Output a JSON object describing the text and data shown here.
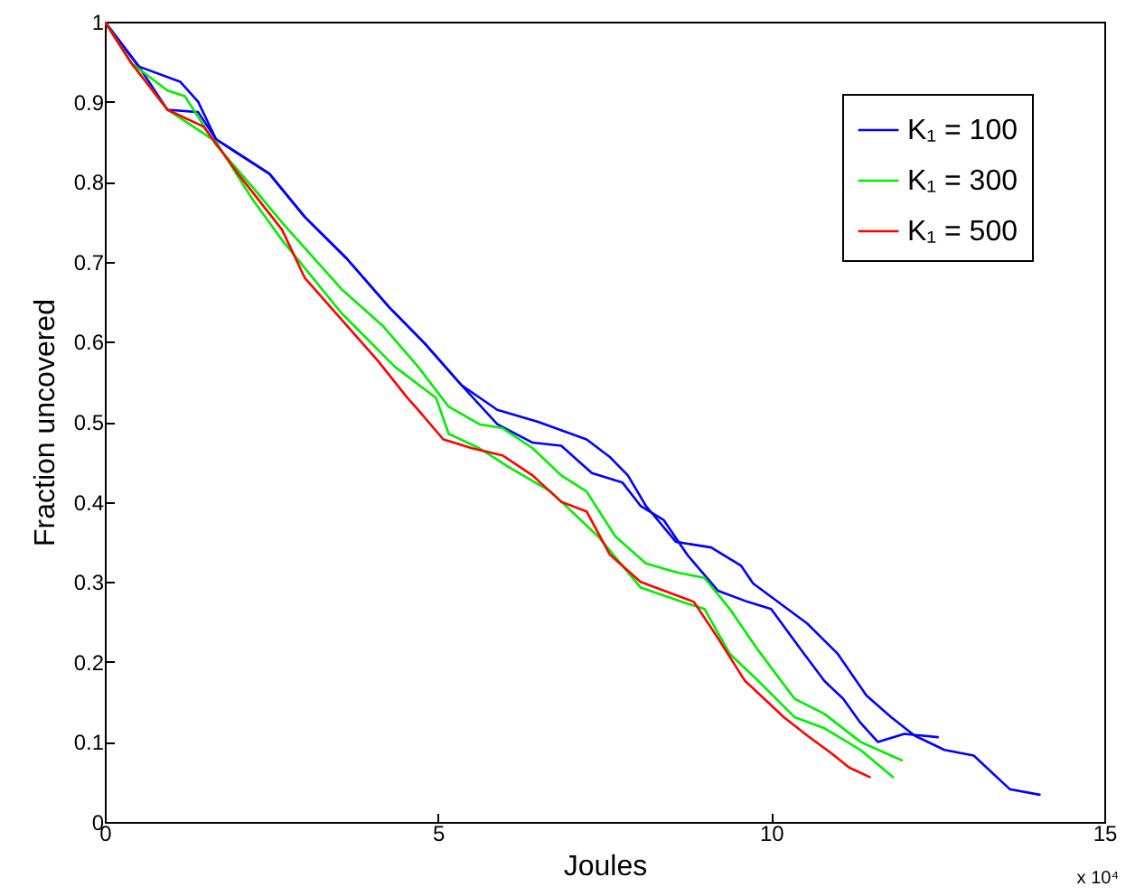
{
  "chart_data": {
    "type": "line",
    "xlabel": "Joules",
    "ylabel": "Fraction uncovered",
    "annotations": [
      "x 10⁴"
    ],
    "legend": "top right",
    "xlim": [
      0,
      15
    ],
    "ylim": [
      0,
      1
    ],
    "xticks": [
      0,
      5,
      10,
      15
    ],
    "yticks": [
      0,
      0.1,
      0.2,
      0.3,
      0.4,
      0.5,
      0.6,
      0.7,
      0.8,
      0.9,
      1
    ],
    "series": [
      {
        "name": "K₁ = 100",
        "color": "#0000ff",
        "x": [
          0,
          0.51,
          1.13,
          1.4,
          1.67,
          2.47,
          3.0,
          3.63,
          4.27,
          4.8,
          5.35,
          5.89,
          6.5,
          7.23,
          7.58,
          7.85,
          8.12,
          8.57,
          9.1,
          9.55,
          9.73,
          10.54,
          11.0,
          11.43,
          11.8,
          12.15,
          12.6,
          13.04,
          13.58,
          14.03
        ],
        "values": [
          1,
          0.944,
          0.925,
          0.9,
          0.853,
          0.81,
          0.756,
          0.704,
          0.643,
          0.598,
          0.546,
          0.515,
          0.5,
          0.478,
          0.456,
          0.433,
          0.395,
          0.35,
          0.343,
          0.32,
          0.298,
          0.248,
          0.21,
          0.158,
          0.131,
          0.108,
          0.09,
          0.083,
          0.041,
          0.034
        ]
      },
      {
        "color": "#0000ff",
        "x": [
          0,
          0.51,
          0.94,
          1.4,
          1.67,
          2.47,
          3.0,
          3.63,
          4.27,
          4.8,
          5.35,
          5.89,
          6.42,
          6.85,
          7.31,
          7.77,
          8.04,
          8.39,
          8.74,
          9.2,
          9.65,
          10.0,
          10.46,
          10.8,
          11.08,
          11.34,
          11.6,
          12.0,
          12.5
        ],
        "values": [
          1,
          0.944,
          0.89,
          0.887,
          0.853,
          0.81,
          0.756,
          0.704,
          0.643,
          0.598,
          0.546,
          0.497,
          0.474,
          0.47,
          0.436,
          0.424,
          0.395,
          0.377,
          0.334,
          0.289,
          0.275,
          0.266,
          0.214,
          0.176,
          0.154,
          0.124,
          0.1,
          0.11,
          0.106
        ]
      },
      {
        "name": "K₁ = 300",
        "color": "#00ee00",
        "x": [
          0,
          0.4,
          0.94,
          1.2,
          1.67,
          2.2,
          2.66,
          3.55,
          4.17,
          4.7,
          5.16,
          5.62,
          5.97,
          6.42,
          6.85,
          7.23,
          7.66,
          8.12,
          8.57,
          9.0,
          9.38,
          9.81,
          10.35,
          10.8,
          11.34,
          11.96
        ],
        "values": [
          1,
          0.948,
          0.914,
          0.907,
          0.846,
          0.795,
          0.749,
          0.666,
          0.62,
          0.569,
          0.519,
          0.497,
          0.492,
          0.467,
          0.433,
          0.413,
          0.357,
          0.323,
          0.312,
          0.305,
          0.266,
          0.214,
          0.154,
          0.135,
          0.1,
          0.077
        ]
      },
      {
        "color": "#00ee00",
        "x": [
          0,
          0.4,
          0.94,
          1.67,
          2.2,
          2.66,
          3.55,
          4.35,
          4.97,
          5.16,
          5.62,
          6.05,
          6.69,
          7.4,
          8.04,
          8.66,
          9.0,
          9.38,
          9.81,
          10.35,
          10.8,
          11.34,
          11.83
        ],
        "values": [
          1,
          0.948,
          0.89,
          0.85,
          0.78,
          0.727,
          0.636,
          0.569,
          0.53,
          0.485,
          0.467,
          0.444,
          0.413,
          0.357,
          0.293,
          0.275,
          0.266,
          0.21,
          0.176,
          0.131,
          0.117,
          0.09,
          0.056
        ]
      },
      {
        "name": "K₁ = 500",
        "color": "#ff0000",
        "x": [
          0,
          0.4,
          0.94,
          1.48,
          2.0,
          2.66,
          3.0,
          3.55,
          4.1,
          4.54,
          4.7,
          5.08,
          5.51,
          5.97,
          6.42,
          6.85,
          7.23,
          7.58,
          8.04,
          8.84,
          9.2,
          9.6,
          10.19,
          10.54,
          10.9,
          11.17,
          11.48
        ],
        "values": [
          1,
          0.948,
          0.89,
          0.869,
          0.81,
          0.74,
          0.68,
          0.628,
          0.576,
          0.53,
          0.515,
          0.478,
          0.467,
          0.458,
          0.433,
          0.4,
          0.388,
          0.334,
          0.3,
          0.275,
          0.23,
          0.177,
          0.131,
          0.108,
          0.086,
          0.068,
          0.056
        ]
      }
    ]
  }
}
